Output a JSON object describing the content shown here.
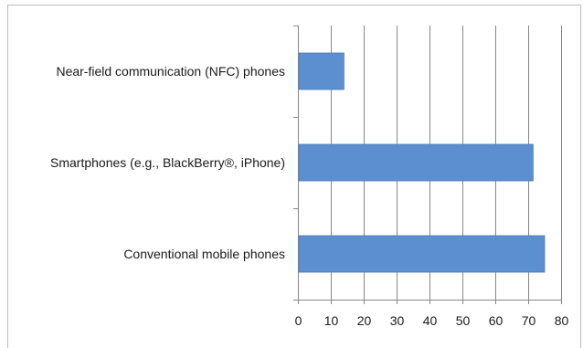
{
  "chart_data": {
    "type": "bar",
    "orientation": "horizontal",
    "categories": [
      "Near-field communication (NFC) phones",
      "Smartphones (e.g., BlackBerry®, iPhone)",
      "Conventional mobile phones"
    ],
    "values": [
      14,
      71.5,
      75
    ],
    "xlim": [
      0,
      80
    ],
    "xticks": [
      "0",
      "10",
      "20",
      "30",
      "40",
      "50",
      "60",
      "70",
      "80"
    ],
    "title": "",
    "xlabel": "",
    "ylabel": "",
    "grid": true,
    "legend": "none",
    "bar_color": "#5b8fd0",
    "bar_edge_color": "#4a7ab8",
    "grid_color": "#878787"
  }
}
